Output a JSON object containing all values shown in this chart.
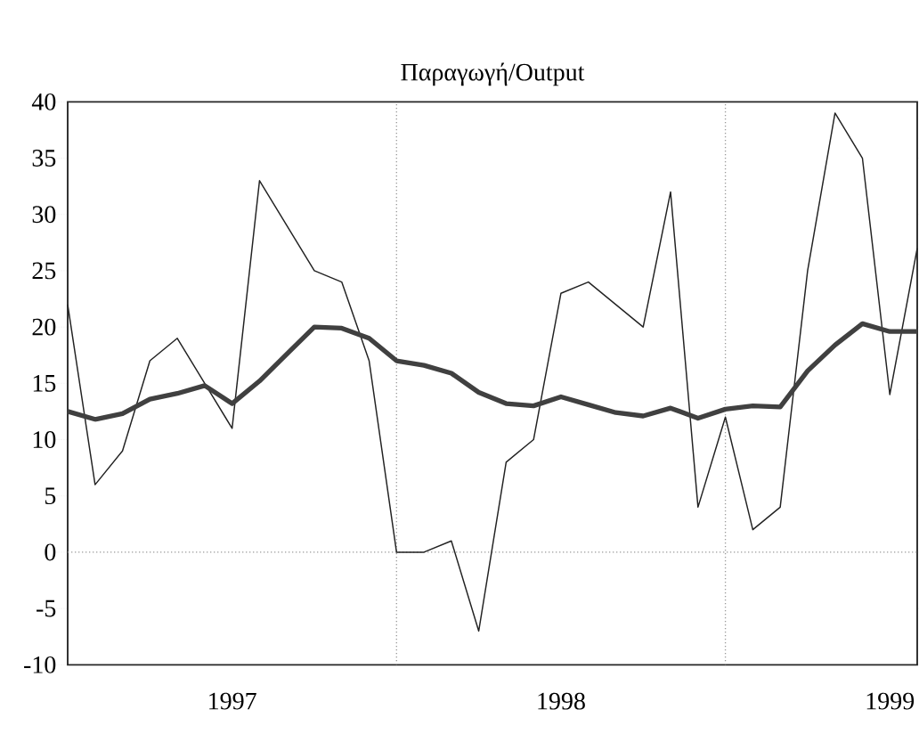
{
  "chart_data": {
    "type": "line",
    "title": "Παραγωγή/Output",
    "x": [
      "1997-01",
      "1997-02",
      "1997-03",
      "1997-04",
      "1997-05",
      "1997-06",
      "1997-07",
      "1997-08",
      "1997-09",
      "1997-10",
      "1997-11",
      "1997-12",
      "1998-01",
      "1998-02",
      "1998-03",
      "1998-04",
      "1998-05",
      "1998-06",
      "1998-07",
      "1998-08",
      "1998-09",
      "1998-10",
      "1998-11",
      "1998-12",
      "1999-01",
      "1999-02",
      "1999-03",
      "1999-04",
      "1999-05",
      "1999-06",
      "1999-07",
      "1999-08"
    ],
    "series": [
      {
        "color": "#222222",
        "values": [
          22,
          6,
          9,
          17,
          19,
          15,
          11,
          33,
          29,
          25,
          24,
          17,
          0,
          0,
          1,
          -7,
          8,
          10,
          23,
          24,
          22,
          20,
          32,
          4,
          12,
          2,
          4,
          25,
          39,
          35,
          14,
          27
        ]
      },
      {
        "color": "#404040",
        "values": [
          12.5,
          11.8,
          12.3,
          13.6,
          14.1,
          14.8,
          13.2,
          15.2,
          17.6,
          20,
          19.9,
          19,
          17,
          16.6,
          15.9,
          14.2,
          13.2,
          13,
          13.8,
          13.1,
          12.4,
          12.1,
          12.8,
          11.9,
          12.7,
          13,
          12.9,
          16.1,
          18.4,
          20.3,
          19.6,
          19.6
        ]
      }
    ],
    "xlim": [
      "1997-01",
      "1999-08"
    ],
    "xticks": [
      {
        "value": "1997-07",
        "label": "1997"
      },
      {
        "value": "1998-07",
        "label": "1998"
      },
      {
        "value": "1999-07",
        "label": "1999"
      }
    ],
    "ylim": [
      -10,
      40
    ],
    "yticks": [
      -10,
      -5,
      0,
      5,
      10,
      15,
      20,
      25,
      30,
      35,
      40
    ],
    "ref_lines": [
      {
        "axis": "x",
        "value": "1998-01",
        "color": "#999999",
        "line_style": "dotted"
      },
      {
        "axis": "x",
        "value": "1999-01",
        "color": "#999999",
        "line_style": "dotted"
      },
      {
        "axis": "y",
        "value": 0,
        "color": "#999999",
        "line_style": "dotted"
      }
    ],
    "grid": false,
    "marker": "none",
    "line_style": "solid"
  }
}
